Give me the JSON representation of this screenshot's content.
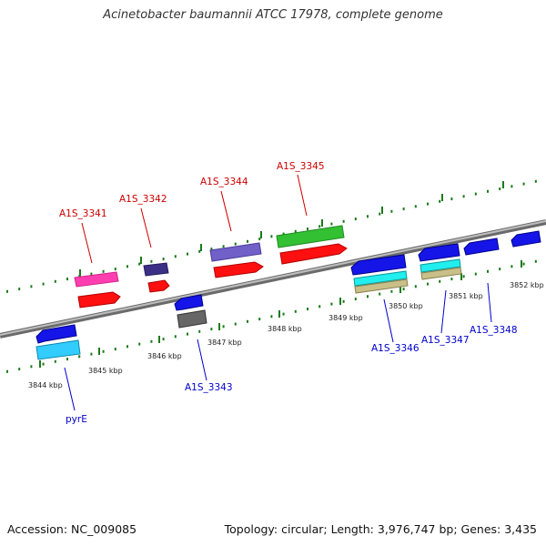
{
  "title": "Acinetobacter baumannii ATCC 17978, complete genome",
  "accession": "Accession: NC_009085",
  "summary": "Topology: circular; Length: 3,976,747 bp; Genes: 3,435",
  "kbp_labels": [
    "3844 kbp",
    "3845 kbp",
    "3846 kbp",
    "3847 kbp",
    "3848 kbp",
    "3849 kbp",
    "3850 kbp",
    "3851 kbp",
    "3852 kbp"
  ],
  "genes_top": [
    "A1S_3341",
    "A1S_3342",
    "A1S_3344",
    "A1S_3345"
  ],
  "genes_bottom": [
    "pyrE",
    "A1S_3343",
    "A1S_3346",
    "A1S_3347",
    "A1S_3348"
  ],
  "colors": {
    "top_label": "#cc0000",
    "bottom_label": "#0000cc",
    "axis": "#999999",
    "tick": "#1a7a1a"
  }
}
